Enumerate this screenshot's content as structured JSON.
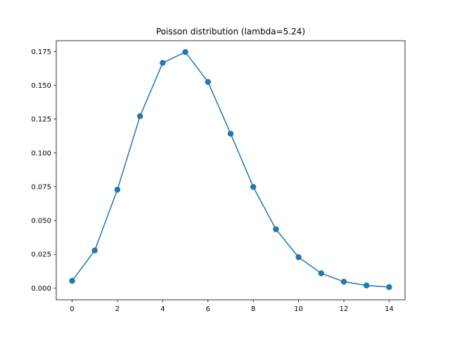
{
  "chart_data": {
    "type": "line",
    "title": "Poisson distribution (lambda=5.24)",
    "xlabel": "",
    "ylabel": "",
    "xlim": [
      -0.7,
      14.7
    ],
    "ylim": [
      -0.0087,
      0.183
    ],
    "xticks": [
      0,
      2,
      4,
      6,
      8,
      10,
      12,
      14
    ],
    "xtick_labels": [
      "0",
      "2",
      "4",
      "6",
      "8",
      "10",
      "12",
      "14"
    ],
    "yticks": [
      0.0,
      0.025,
      0.05,
      0.075,
      0.1,
      0.125,
      0.15,
      0.175
    ],
    "ytick_labels": [
      "0.000",
      "0.025",
      "0.050",
      "0.075",
      "0.100",
      "0.125",
      "0.150",
      "0.175"
    ],
    "grid": false,
    "markers": true,
    "series": [
      {
        "color": "#1f77b4",
        "x": [
          0,
          1,
          2,
          3,
          4,
          5,
          6,
          7,
          8,
          9,
          10,
          11,
          12,
          13,
          14
        ],
        "y": [
          0.0053,
          0.0278,
          0.0728,
          0.1272,
          0.1666,
          0.1746,
          0.1525,
          0.1142,
          0.0748,
          0.0435,
          0.0228,
          0.0109,
          0.0047,
          0.0019,
          0.0007
        ]
      }
    ]
  }
}
